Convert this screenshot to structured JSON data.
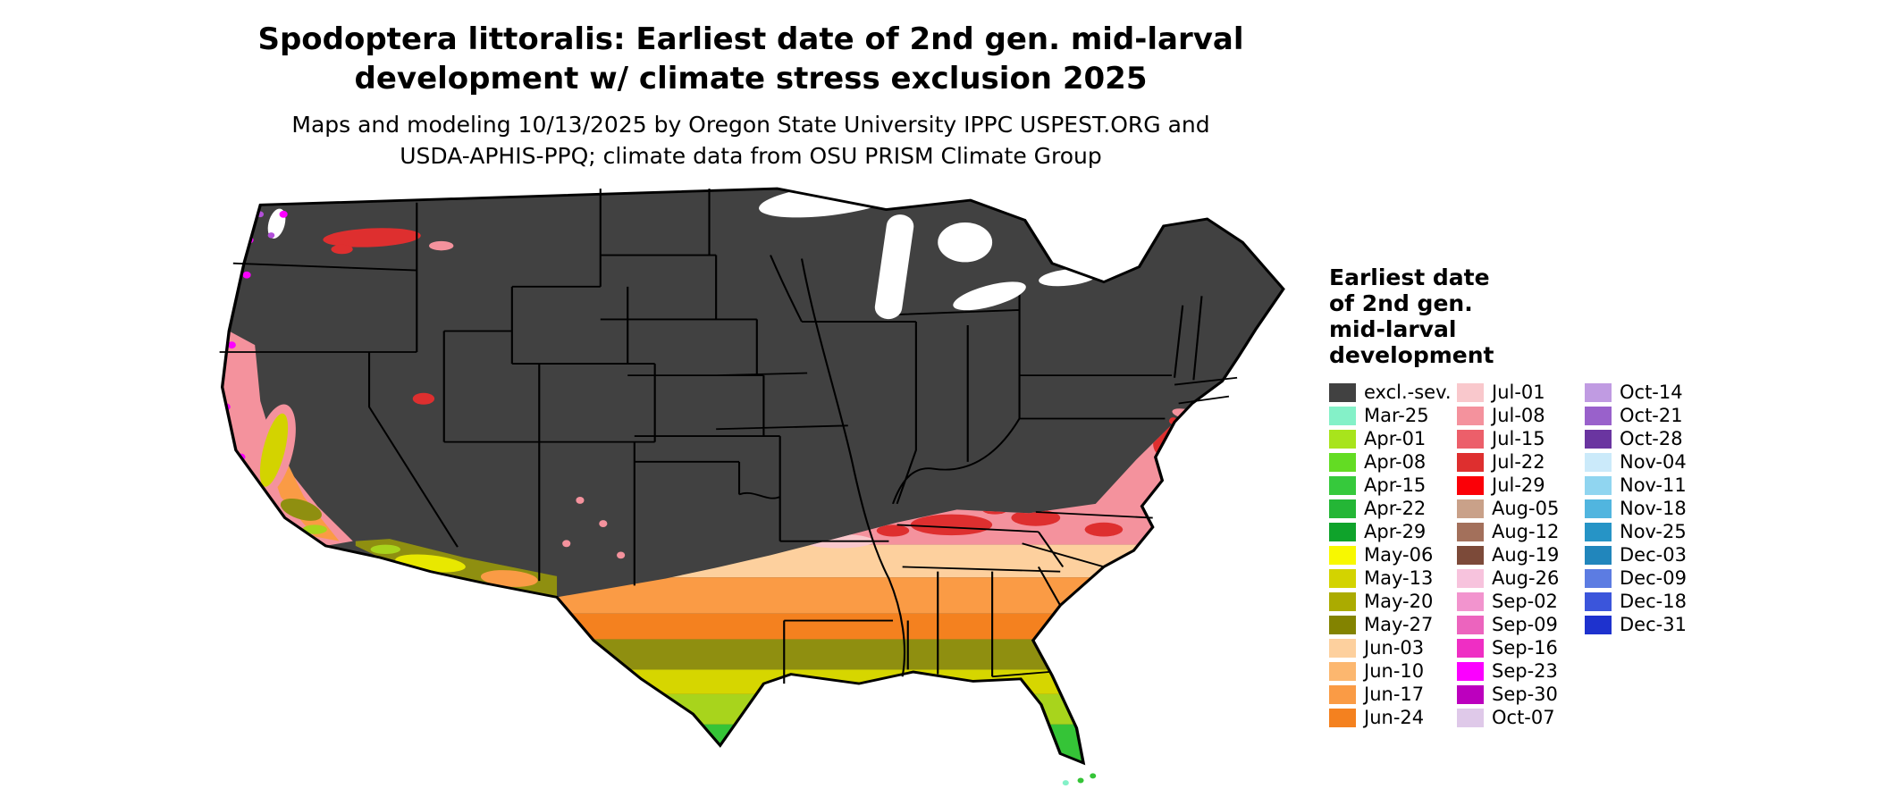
{
  "title": {
    "line1": "Spodoptera littoralis: Earliest date of 2nd gen. mid-larval",
    "line2": "development w/ climate stress exclusion 2025"
  },
  "subtitle": {
    "line1": "Maps and modeling 10/13/2025 by Oregon State University IPPC USPEST.ORG and",
    "line2": "USDA-APHIS-PPQ; climate data from OSU PRISM Climate Group"
  },
  "map": {
    "region": "contiguous-united-states",
    "excluded_fill": "#414141",
    "border_color": "#000000",
    "water_fill": "#ffffff"
  },
  "legend": {
    "title_lines": [
      "Earliest date",
      "of 2nd gen.",
      "mid-larval",
      "development"
    ],
    "columns": [
      [
        {
          "label": "excl.-sev.",
          "color": "#414141"
        },
        {
          "label": "Mar-25",
          "color": "#84F1C8"
        },
        {
          "label": "Apr-01",
          "color": "#A8E41C"
        },
        {
          "label": "Apr-08",
          "color": "#63DC23"
        },
        {
          "label": "Apr-15",
          "color": "#36C93C"
        },
        {
          "label": "Apr-22",
          "color": "#24B636"
        },
        {
          "label": "Apr-29",
          "color": "#0FA32B"
        },
        {
          "label": "May-06",
          "color": "#F8F800"
        },
        {
          "label": "May-13",
          "color": "#D3D300"
        },
        {
          "label": "May-20",
          "color": "#ABAB00"
        },
        {
          "label": "May-27",
          "color": "#838300"
        },
        {
          "label": "Jun-03",
          "color": "#FDD09E"
        },
        {
          "label": "Jun-10",
          "color": "#FCB76F"
        },
        {
          "label": "Jun-17",
          "color": "#FA9B45"
        },
        {
          "label": "Jun-24",
          "color": "#F4811F"
        }
      ],
      [
        {
          "label": "Jul-01",
          "color": "#F9C8CC"
        },
        {
          "label": "Jul-08",
          "color": "#F4929D"
        },
        {
          "label": "Jul-15",
          "color": "#EC5F6A"
        },
        {
          "label": "Jul-22",
          "color": "#DE2F2F"
        },
        {
          "label": "Jul-29",
          "color": "#FB0007"
        },
        {
          "label": "Aug-05",
          "color": "#C9A189"
        },
        {
          "label": "Aug-12",
          "color": "#A3705B"
        },
        {
          "label": "Aug-19",
          "color": "#7C4A39"
        },
        {
          "label": "Aug-26",
          "color": "#F7C3DD"
        },
        {
          "label": "Sep-02",
          "color": "#F294CE"
        },
        {
          "label": "Sep-09",
          "color": "#EC64BE"
        },
        {
          "label": "Sep-16",
          "color": "#EF2EC4"
        },
        {
          "label": "Sep-23",
          "color": "#FB00FF"
        },
        {
          "label": "Sep-30",
          "color": "#BC00BE"
        },
        {
          "label": "Oct-07",
          "color": "#DFC9E9"
        }
      ],
      [
        {
          "label": "Oct-14",
          "color": "#C09BE2"
        },
        {
          "label": "Oct-21",
          "color": "#9961CB"
        },
        {
          "label": "Oct-28",
          "color": "#6A35A0"
        },
        {
          "label": "Nov-04",
          "color": "#CBEAFA"
        },
        {
          "label": "Nov-11",
          "color": "#90D5F0"
        },
        {
          "label": "Nov-18",
          "color": "#51B5DF"
        },
        {
          "label": "Nov-25",
          "color": "#2694C6"
        },
        {
          "label": "Dec-03",
          "color": "#2186BC"
        },
        {
          "label": "Dec-09",
          "color": "#5C7CE2"
        },
        {
          "label": "Dec-18",
          "color": "#3B55DB"
        },
        {
          "label": "Dec-31",
          "color": "#1E32CE"
        }
      ]
    ]
  }
}
